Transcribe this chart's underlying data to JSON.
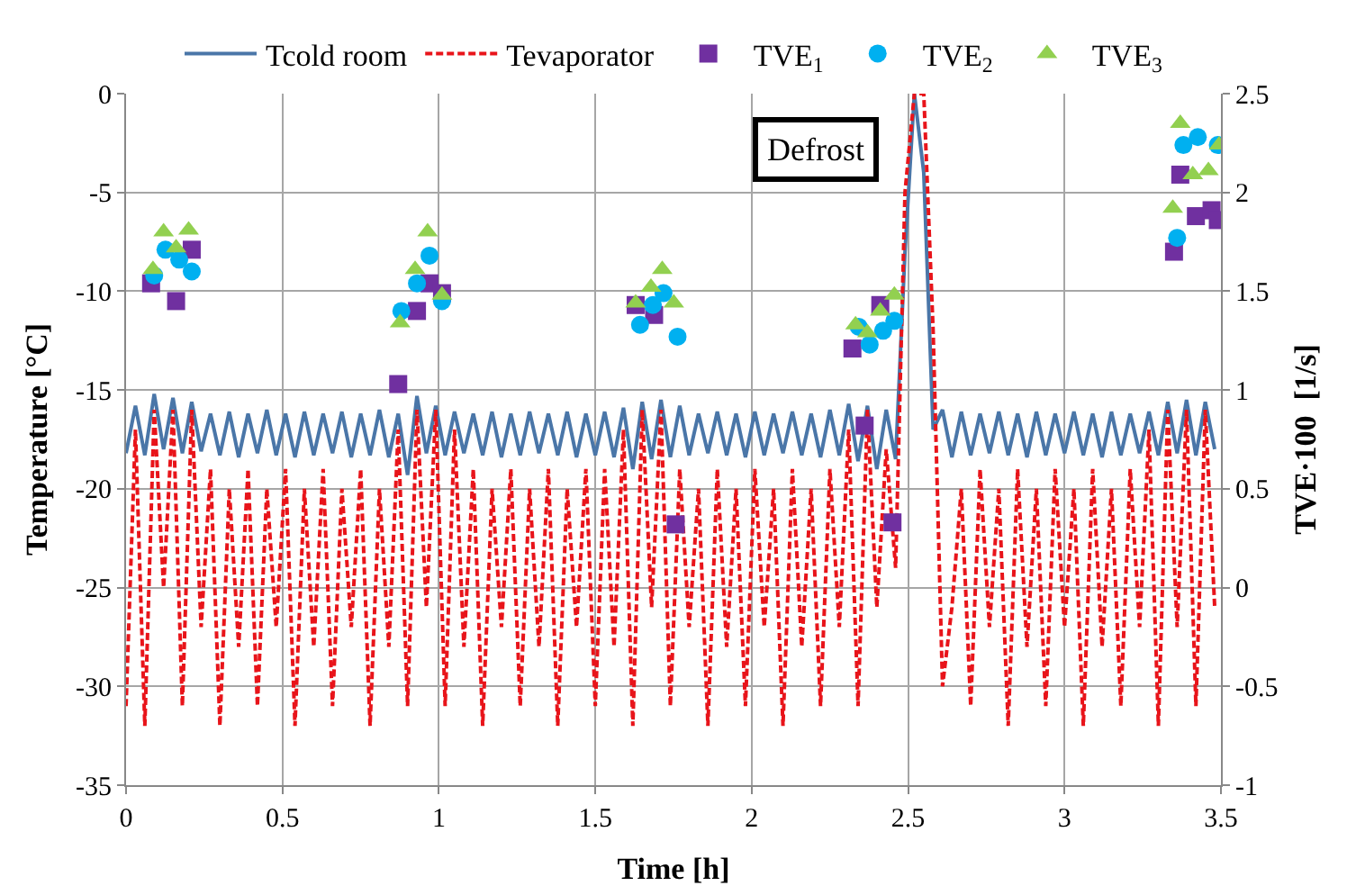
{
  "chart_data": {
    "type": "line",
    "xlabel": "Time [h]",
    "ylabel": "Temperature [°C]",
    "y2label": "TVE·100  [1/s]",
    "x": [
      0,
      0.03,
      0.06,
      0.09,
      0.12,
      0.15,
      0.18,
      0.21,
      0.24,
      0.27,
      0.3,
      0.33,
      0.36,
      0.39,
      0.42,
      0.45,
      0.48,
      0.51,
      0.54,
      0.57,
      0.6,
      0.63,
      0.66,
      0.69,
      0.72,
      0.75,
      0.78,
      0.81,
      0.84,
      0.87,
      0.9,
      0.93,
      0.96,
      0.99,
      1.02,
      1.05,
      1.08,
      1.11,
      1.14,
      1.17,
      1.2,
      1.23,
      1.26,
      1.29,
      1.32,
      1.35,
      1.38,
      1.41,
      1.44,
      1.47,
      1.5,
      1.53,
      1.56,
      1.59,
      1.62,
      1.65,
      1.68,
      1.71,
      1.74,
      1.77,
      1.8,
      1.83,
      1.86,
      1.89,
      1.92,
      1.95,
      1.98,
      2.01,
      2.04,
      2.07,
      2.1,
      2.13,
      2.16,
      2.19,
      2.22,
      2.25,
      2.28,
      2.31,
      2.34,
      2.37,
      2.4,
      2.43,
      2.46,
      2.49,
      2.52,
      2.55,
      2.58,
      2.61,
      2.64,
      2.67,
      2.7,
      2.73,
      2.76,
      2.79,
      2.82,
      2.85,
      2.88,
      2.91,
      2.94,
      2.97,
      3,
      3.03,
      3.06,
      3.09,
      3.12,
      3.15,
      3.18,
      3.21,
      3.24,
      3.27,
      3.3,
      3.33,
      3.36,
      3.39,
      3.42,
      3.45,
      3.48
    ],
    "series": [
      {
        "name": "Tcold room",
        "line_style": "solid",
        "marker": "none",
        "color": "#4a76a8",
        "values": [
          -18.2,
          -15.8,
          -18.3,
          -15.2,
          -18.0,
          -15.4,
          -18.2,
          -15.6,
          -18.1,
          -16.2,
          -18.3,
          -16.1,
          -18.4,
          -16.2,
          -18.2,
          -16.0,
          -18.3,
          -16.2,
          -18.4,
          -16.1,
          -18.3,
          -16.2,
          -18.2,
          -16.1,
          -18.4,
          -16.2,
          -18.3,
          -16.0,
          -18.4,
          -16.2,
          -19.3,
          -15.3,
          -18.2,
          -15.8,
          -18.3,
          -16.1,
          -18.2,
          -16.2,
          -18.3,
          -16.1,
          -18.4,
          -16.2,
          -18.3,
          -16.1,
          -18.2,
          -16.2,
          -18.3,
          -16.1,
          -18.4,
          -16.2,
          -18.3,
          -16.1,
          -18.4,
          -15.9,
          -19.0,
          -15.6,
          -18.5,
          -15.5,
          -18.4,
          -15.8,
          -18.3,
          -16.2,
          -18.2,
          -16.1,
          -18.3,
          -16.2,
          -18.4,
          -16.1,
          -18.3,
          -16.2,
          -18.2,
          -16.1,
          -18.3,
          -16.2,
          -18.4,
          -16.0,
          -18.3,
          -15.7,
          -18.6,
          -15.8,
          -19.0,
          -16.0,
          -18.5,
          -8.0,
          0,
          -4.0,
          -17.0,
          -16.0,
          -18.4,
          -16.1,
          -18.3,
          -16.2,
          -18.2,
          -16.1,
          -18.3,
          -16.2,
          -18.4,
          -16.1,
          -18.3,
          -16.2,
          -18.2,
          -16.1,
          -18.3,
          -16.2,
          -18.4,
          -16.1,
          -18.3,
          -16.2,
          -18.2,
          -16.1,
          -18.3,
          -15.6,
          -18.2,
          -15.5,
          -18.3,
          -15.6,
          -18.0
        ]
      },
      {
        "name": "Tevaporator",
        "line_style": "dashed",
        "marker": "none",
        "color": "#e8141a",
        "values": [
          -31,
          -17,
          -32,
          -16,
          -25,
          -16,
          -31,
          -16,
          -27,
          -19,
          -32,
          -20,
          -28,
          -19,
          -31,
          -20,
          -27,
          -19,
          -32,
          -20,
          -28,
          -19,
          -31,
          -20,
          -27,
          -19,
          -32,
          -20,
          -28,
          -17,
          -31,
          -16,
          -26,
          -16,
          -31,
          -17,
          -28,
          -19,
          -32,
          -20,
          -27,
          -19,
          -31,
          -20,
          -28,
          -19,
          -32,
          -20,
          -27,
          -19,
          -31,
          -19,
          -28,
          -17,
          -32,
          -16,
          -26,
          -16,
          -31,
          -19,
          -27,
          -20,
          -32,
          -19,
          -28,
          -20,
          -31,
          -19,
          -27,
          -20,
          -32,
          -19,
          -28,
          -20,
          -31,
          -19,
          -27,
          -17,
          -31,
          -16,
          -26,
          -18,
          -24,
          -5,
          0,
          0,
          -12,
          -30,
          -26,
          -20,
          -31,
          -19,
          -27,
          -20,
          -32,
          -19,
          -28,
          -20,
          -31,
          -19,
          -27,
          -20,
          -32,
          -19,
          -28,
          -20,
          -31,
          -19,
          -27,
          -17,
          -32,
          -16,
          -27,
          -16,
          -31,
          -16,
          -26
        ]
      },
      {
        "name": "TVE$_{1}$",
        "type": "scatter",
        "axis": "y2",
        "marker": "square",
        "color": "#7030a0",
        "x": [
          0.08,
          0.16,
          0.21,
          0.87,
          0.93,
          0.97,
          1.01,
          1.629,
          1.688,
          1.757,
          2.322,
          2.361,
          2.411,
          2.45,
          3.35,
          3.37,
          3.42,
          3.47,
          3.49
        ],
        "values": [
          1.54,
          1.45,
          1.71,
          1.03,
          1.4,
          1.54,
          1.49,
          1.43,
          1.38,
          0.32,
          1.21,
          0.82,
          1.43,
          0.33,
          1.7,
          2.09,
          1.88,
          1.91,
          1.86
        ]
      },
      {
        "name": "TVE$_{2}$",
        "type": "scatter",
        "axis": "y2",
        "marker": "circle",
        "color": "#00b0f0",
        "x": [
          0.09,
          0.126,
          0.17,
          0.21,
          0.88,
          0.93,
          0.97,
          1.01,
          1.643,
          1.684,
          1.718,
          1.763,
          2.342,
          2.377,
          2.42,
          2.456,
          3.36,
          3.38,
          3.426,
          3.49
        ],
        "values": [
          1.58,
          1.71,
          1.66,
          1.6,
          1.4,
          1.54,
          1.68,
          1.45,
          1.33,
          1.43,
          1.49,
          1.27,
          1.32,
          1.23,
          1.3,
          1.35,
          1.77,
          2.24,
          2.28,
          2.24
        ]
      },
      {
        "name": "TVE$_{3}$",
        "type": "scatter",
        "axis": "y2",
        "marker": "triangle",
        "color": "#92d050",
        "x": [
          0.086,
          0.12,
          0.16,
          0.2,
          0.876,
          0.924,
          0.964,
          1.01,
          1.629,
          1.678,
          1.714,
          1.751,
          2.332,
          2.37,
          2.411,
          2.456,
          3.346,
          3.37,
          3.41,
          3.46,
          3.494
        ],
        "values": [
          1.61,
          1.8,
          1.72,
          1.81,
          1.34,
          1.61,
          1.8,
          1.48,
          1.44,
          1.52,
          1.61,
          1.44,
          1.33,
          1.29,
          1.4,
          1.48,
          1.92,
          2.35,
          2.09,
          2.11,
          2.24
        ]
      }
    ],
    "xlim": [
      0,
      3.5
    ],
    "xticks": [
      0,
      0.5,
      1,
      1.5,
      2,
      2.5,
      3,
      3.5
    ],
    "ylim": [
      -35,
      0
    ],
    "yticks": [
      -35,
      -30,
      -25,
      -20,
      -15,
      -10,
      -5,
      0
    ],
    "y2lim": [
      -1,
      2.5
    ],
    "y2ticks": [
      -1,
      -0.5,
      0,
      0.5,
      1,
      1.5,
      2,
      2.5
    ],
    "grid": true,
    "legend": "top",
    "annotations": [
      "Defrost"
    ]
  }
}
